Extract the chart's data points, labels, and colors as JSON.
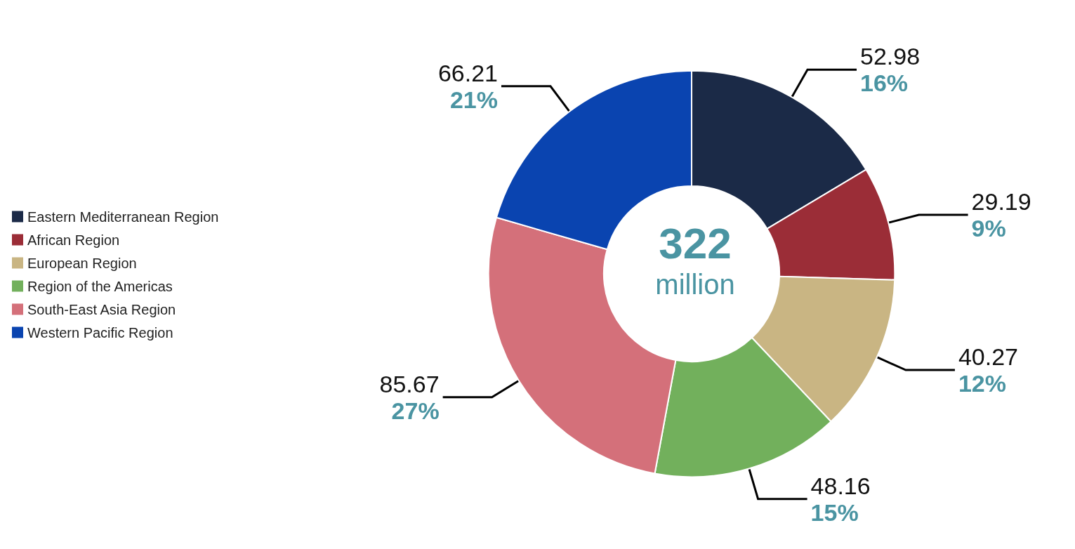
{
  "chart_data": {
    "type": "donut",
    "title": "322",
    "subtitle": "million",
    "categories": [
      "Eastern Mediterranean Region",
      "African Region",
      "European Region",
      "Region of the Americas",
      "South-East Asia Region",
      "Western Pacific Region"
    ],
    "values": [
      52.98,
      29.19,
      40.27,
      48.16,
      85.67,
      66.21
    ],
    "colors": [
      "#1b2a47",
      "#9b2d37",
      "#c9b583",
      "#72b05c",
      "#d4707a",
      "#0a44b0"
    ],
    "value_labels": [
      "52.98\n16%",
      "29.19\n9%",
      "40.27\n12%",
      "48.16\n15%",
      "85.67\n27%",
      "66.21\n21%"
    ],
    "legend": "left"
  }
}
